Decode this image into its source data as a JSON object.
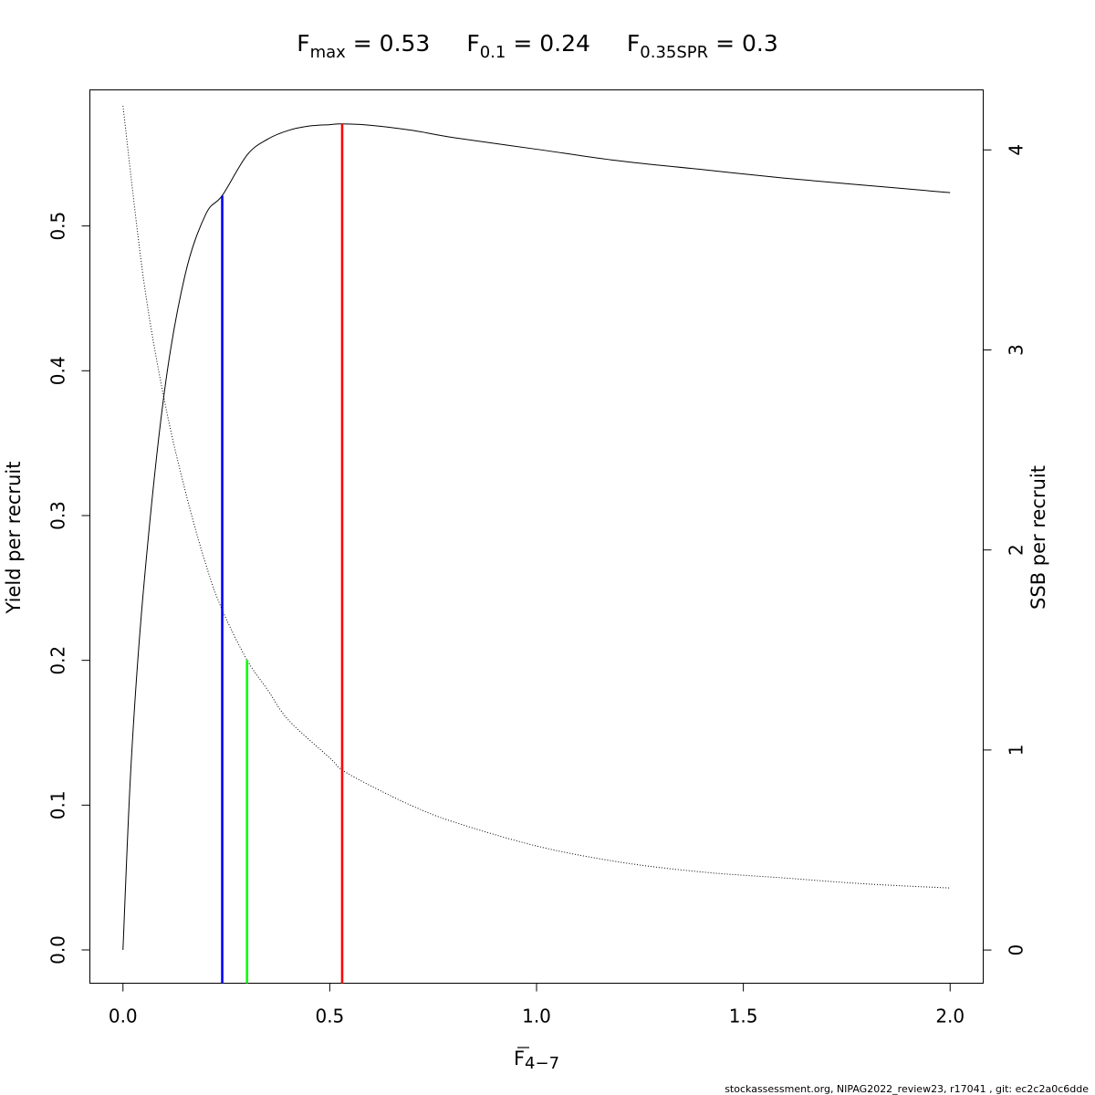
{
  "title_parts": [
    {
      "main": "F",
      "sub": "max",
      "rest": " = 0.53"
    },
    {
      "main": "F",
      "sub": "0.1",
      "rest": " = 0.24"
    },
    {
      "main": "F",
      "sub": "0.35SPR",
      "rest": " = 0.3"
    }
  ],
  "footer": "stockassessment.org, NIPAG2022_review23, r17041 , git: ec2c2a0c6dde",
  "chart_data": {
    "type": "line",
    "xlabel": {
      "main": "F",
      "sub": "4−7"
    },
    "ylabel": "Yield per recruit",
    "y2label": "SSB per recruit",
    "xlim": [
      -0.08,
      2.08
    ],
    "ylim": [
      -0.023,
      0.594
    ],
    "y2lim": [
      -0.166,
      4.3
    ],
    "x_ticks": [
      0.0,
      0.5,
      1.0,
      1.5,
      2.0
    ],
    "x_tick_labels": [
      "0.0",
      "0.5",
      "1.0",
      "1.5",
      "2.0"
    ],
    "y_ticks": [
      0.0,
      0.1,
      0.2,
      0.3,
      0.4,
      0.5
    ],
    "y_tick_labels": [
      "0.0",
      "0.1",
      "0.2",
      "0.3",
      "0.4",
      "0.5"
    ],
    "y2_ticks": [
      0,
      1,
      2,
      3,
      4
    ],
    "y2_tick_labels": [
      "0",
      "1",
      "2",
      "3",
      "4"
    ],
    "series": [
      {
        "axis": "left",
        "style": "solid",
        "color": "#000000",
        "x": [
          0.0,
          0.02,
          0.05,
          0.1,
          0.15,
          0.2,
          0.24,
          0.3,
          0.35,
          0.4,
          0.45,
          0.5,
          0.53,
          0.6,
          0.7,
          0.8,
          1.0,
          1.2,
          1.4,
          1.6,
          1.8,
          2.0
        ],
        "values": [
          0.0,
          0.13,
          0.25,
          0.385,
          0.466,
          0.508,
          0.521,
          0.549,
          0.56,
          0.566,
          0.569,
          0.57,
          0.5705,
          0.5695,
          0.566,
          0.561,
          0.553,
          0.545,
          0.539,
          0.533,
          0.528,
          0.523
        ]
      },
      {
        "axis": "right",
        "style": "dotted",
        "color": "#000000",
        "x": [
          0.0,
          0.05,
          0.1,
          0.15,
          0.2,
          0.24,
          0.3,
          0.35,
          0.4,
          0.5,
          0.53,
          0.6,
          0.7,
          0.8,
          1.0,
          1.2,
          1.4,
          1.6,
          1.8,
          2.0
        ],
        "values": [
          4.22,
          3.35,
          2.75,
          2.3,
          1.93,
          1.7,
          1.45,
          1.3,
          1.15,
          0.96,
          0.9,
          0.82,
          0.72,
          0.64,
          0.52,
          0.44,
          0.39,
          0.36,
          0.33,
          0.31
        ]
      }
    ],
    "reference_lines": [
      {
        "name": "F0.1",
        "x": 0.24,
        "y_top": 0.521,
        "axis": "left",
        "color": "#0000ff"
      },
      {
        "name": "F0.35SPR",
        "x": 0.3,
        "y_top": 1.45,
        "axis": "right",
        "color": "#00ff00"
      },
      {
        "name": "Fmax",
        "x": 0.53,
        "y_top": 0.5705,
        "axis": "left",
        "color": "#ff0000"
      }
    ]
  }
}
